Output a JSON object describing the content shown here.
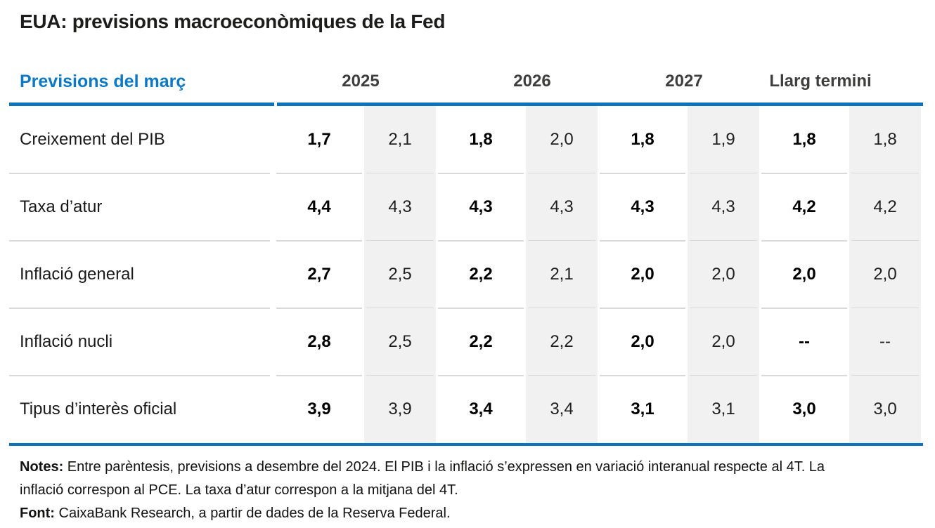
{
  "title": "EUA: previsions macroeconòmiques de la Fed",
  "table": {
    "corner_label": "Previsions del març",
    "column_groups": [
      "2025",
      "2026",
      "2027",
      "Llarg termini"
    ],
    "rows": [
      {
        "label": "Creixement del PIB",
        "values": [
          "1,7",
          "2,1",
          "1,8",
          "2,0",
          "1,8",
          "1,9",
          "1,8",
          "1,8"
        ]
      },
      {
        "label": "Taxa d’atur",
        "values": [
          "4,4",
          "4,3",
          "4,3",
          "4,3",
          "4,3",
          "4,3",
          "4,2",
          "4,2"
        ]
      },
      {
        "label": "Inflació general",
        "values": [
          "2,7",
          "2,5",
          "2,2",
          "2,1",
          "2,0",
          "2,0",
          "2,0",
          "2,0"
        ]
      },
      {
        "label": "Inflació nucli",
        "values": [
          "2,8",
          "2,5",
          "2,2",
          "2,2",
          "2,0",
          "2,0",
          "--",
          "--"
        ]
      },
      {
        "label": "Tipus d’interès oficial",
        "values": [
          "3,9",
          "3,9",
          "3,4",
          "3,4",
          "3,1",
          "3,1",
          "3,0",
          "3,0"
        ]
      }
    ]
  },
  "notes": {
    "notes_label": "Notes:",
    "notes_text": " Entre parèntesis, previsions a desembre del 2024. El PIB i la inflació s’expressen en variació interanual respecte al 4T. La inflació correspon al PCE. La taxa d’atur correspon a la mitjana del 4T.",
    "font_label": "Font:",
    "font_text": " CaixaBank Research, a partir de dades de la Reserva Federal."
  },
  "colors": {
    "accent_blue": "#0b74ba",
    "header_text_blue": "#0d78c4",
    "stripe_gray": "#f1f1f1",
    "separator_gray": "#d9d9d9",
    "title_text": "#1d1d1b"
  },
  "chart_data": {
    "type": "table",
    "title": "EUA: previsions macroeconòmiques de la Fed",
    "header_label": "Previsions del març",
    "column_groups": [
      "2025",
      "2026",
      "2027",
      "Llarg termini"
    ],
    "sub_columns_per_group": [
      "previsió del març",
      "previsió a desembre del 2024"
    ],
    "categories": [
      "Creixement del PIB",
      "Taxa d’atur",
      "Inflació general",
      "Inflació nucli",
      "Tipus d’interès oficial"
    ],
    "series": [
      {
        "name": "2025 març",
        "values": [
          1.7,
          4.4,
          2.7,
          2.8,
          3.9
        ]
      },
      {
        "name": "2025 desembre 2024",
        "values": [
          2.1,
          4.3,
          2.5,
          2.5,
          3.9
        ]
      },
      {
        "name": "2026 març",
        "values": [
          1.8,
          4.3,
          2.2,
          2.2,
          3.4
        ]
      },
      {
        "name": "2026 desembre 2024",
        "values": [
          2.0,
          4.3,
          2.1,
          2.2,
          3.4
        ]
      },
      {
        "name": "2027 març",
        "values": [
          1.8,
          4.3,
          2.0,
          2.0,
          3.1
        ]
      },
      {
        "name": "2027 desembre 2024",
        "values": [
          1.9,
          4.3,
          2.0,
          2.0,
          3.1
        ]
      },
      {
        "name": "Llarg termini març",
        "values": [
          1.8,
          4.2,
          2.0,
          null,
          3.0
        ]
      },
      {
        "name": "Llarg termini desembre 2024",
        "values": [
          1.8,
          4.2,
          2.0,
          null,
          3.0
        ]
      }
    ],
    "notes": "Entre parèntesis, previsions a desembre del 2024. El PIB i la inflació s’expressen en variació interanual respecte al 4T. La inflació correspon al PCE. La taxa d’atur correspon a la mitjana del 4T.",
    "source": "CaixaBank Research, a partir de dades de la Reserva Federal."
  }
}
